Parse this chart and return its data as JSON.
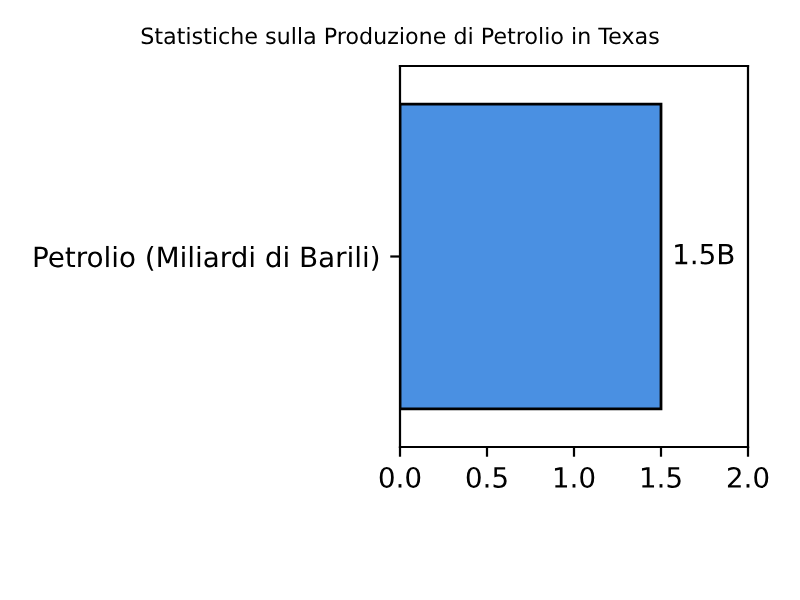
{
  "chart_data": {
    "type": "bar",
    "orientation": "horizontal",
    "title": "Statistiche sulla Produzione di Petrolio in Texas",
    "categories": [
      "Petrolio (Miliardi di Barili)"
    ],
    "values": [
      1.5
    ],
    "color": "#4a90e2",
    "value_labels": [
      "1.5B"
    ],
    "xlim": [
      0,
      2
    ],
    "xticks": [
      {
        "value": 0,
        "label": "0.0"
      },
      {
        "value": 0.5,
        "label": "0.5"
      },
      {
        "value": 1,
        "label": "1.0"
      },
      {
        "value": 1.5,
        "label": "1.5"
      },
      {
        "value": 2,
        "label": "2.0"
      }
    ],
    "grid": false,
    "legend": false
  }
}
